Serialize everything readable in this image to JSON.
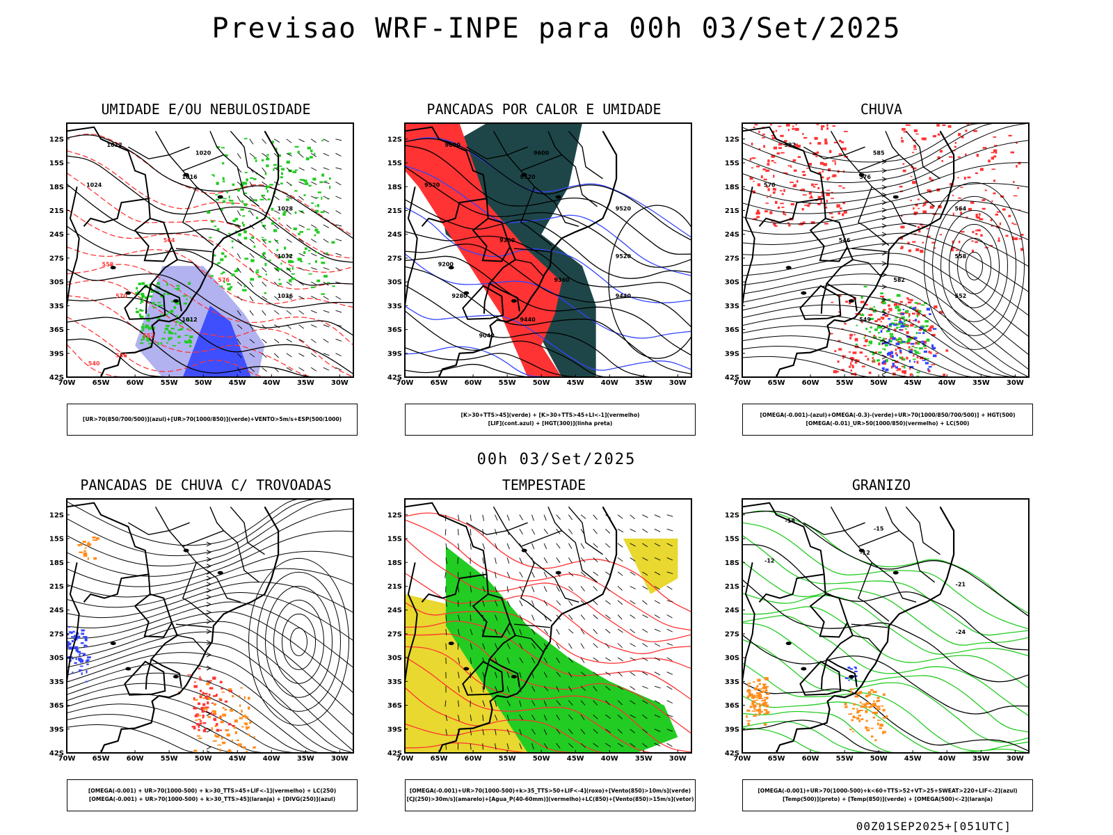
{
  "page": {
    "title": "Previsao WRF-INPE  para 00h 03/Set/2025",
    "mid_date": "00h 03/Set/2025",
    "footer": "00Z01SEP2025+[051UTC]"
  },
  "colors": {
    "green": "#22cc22",
    "red": "#ff3333",
    "blue": "#3344ff",
    "lavender": "#aaaaee",
    "dark_teal": "#1e4648",
    "yellow": "#e8d830",
    "orange": "#ff8c1a",
    "black": "#000000"
  },
  "axes": {
    "lat_labels": [
      "12S",
      "15S",
      "18S",
      "21S",
      "24S",
      "27S",
      "30S",
      "33S",
      "36S",
      "39S",
      "42S"
    ],
    "lon_labels": [
      "70W",
      "65W",
      "60W",
      "55W",
      "50W",
      "45W",
      "40W",
      "35W",
      "30W"
    ],
    "lat_range": [
      -42,
      -10
    ],
    "lon_range": [
      -70,
      -28
    ]
  },
  "panels": [
    {
      "id": "umidade",
      "title": "UMIDADE E/OU NEBULOSIDADE",
      "legend": [
        "[UR>70(850/700/500)](azul)+[UR>70(1000/850)](verde)+VENTO>5m/s+ESP(500/1000)"
      ],
      "contour_labels": [
        "1012",
        "1020",
        "1016",
        "1024",
        "1028",
        "1032",
        "1036",
        "1012",
        "564",
        "576",
        "570",
        "558",
        "552",
        "546",
        "540"
      ]
    },
    {
      "id": "pancadas-calor",
      "title": "PANCADAS POR CALOR E UMIDADE",
      "legend": [
        "[K>30+TTS>45](verde) + [K>30+TTS>45+LI<-1](vermelho)",
        "[LIF](cont.azul) + [HGT(300)](linha preta)"
      ],
      "contour_labels": [
        "9600",
        "9600",
        "9520",
        "9520",
        "9520",
        "9520",
        "9440",
        "9440",
        "9360",
        "9360",
        "9280",
        "9200",
        "9040"
      ]
    },
    {
      "id": "chuva",
      "title": "CHUVA",
      "legend": [
        "[OMEGA(-0.001)-(azul)+OMEGA(-0.3)-(verde)+UR>70(1000/850/700/500)] + HGT(500)",
        "[OMEGA(-0.01)_UR>50(1000/850)(vermelho) + LC(500)"
      ],
      "contour_labels": [
        "582",
        "585",
        "576",
        "570",
        "564",
        "558",
        "552",
        "549",
        "546",
        "582"
      ]
    },
    {
      "id": "pancadas-trovoadas",
      "title": "PANCADAS DE CHUVA C/ TROVOADAS",
      "legend": [
        "[OMEGA(-0.001) + UR>70(1000-500) + k>30_TTS>45+LIF<-1](vermelho) + LC(250)",
        "[OMEGA(-0.001) + UR>70(1000-500) + k>30_TTS>45](laranja) + [DIVG(250)](azul)"
      ],
      "contour_labels": []
    },
    {
      "id": "tempestade",
      "title": "TEMPESTADE",
      "legend": [
        "[OMEGA(-0.001)+UR>70(1000-500)+k>35_TTS>50+LIF<-4](roxo)+[Vento(850)>10m/s](verde)",
        "[CJ(250)>30m/s](amarelo)+[Agua_P(40-60mm)](vermelho)+LC(850)+[Vento(850)>15m/s](vetor)"
      ],
      "contour_labels": []
    },
    {
      "id": "granizo",
      "title": "GRANIZO",
      "legend": [
        "[OMEGA(-0.001)+UR>70(1000-500)+k<60+TTS>52+VT>25+SWEAT>220+LIF<-2](azul)",
        "[Temp(500)](preto) + [Temp(850)](verde) + [OMEGA(500)<-2](laranja)"
      ],
      "contour_labels": [
        "-18",
        "-15",
        "-12",
        "-12",
        "-21",
        "-24"
      ]
    }
  ]
}
